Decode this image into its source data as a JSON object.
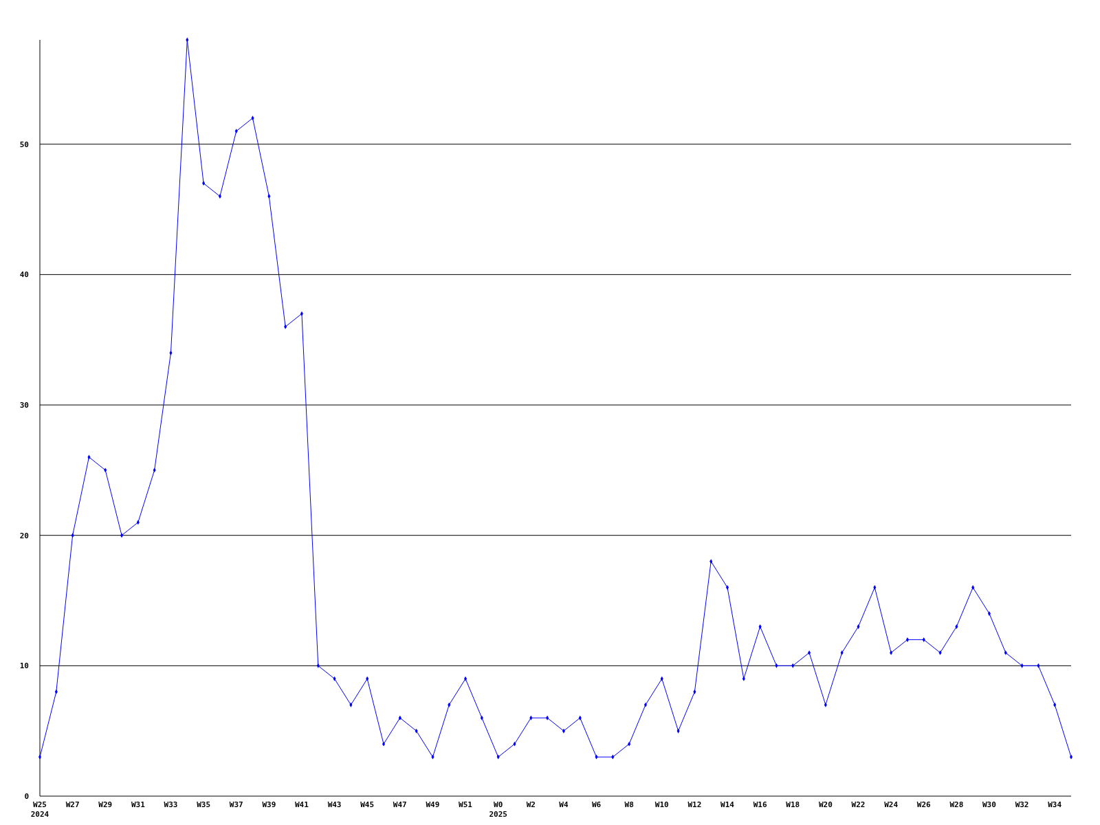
{
  "chart_data": {
    "type": "line",
    "categories": [
      "W25\n2024",
      null,
      "W27",
      null,
      "W29",
      null,
      "W31",
      null,
      "W33",
      null,
      "W35",
      null,
      "W37",
      null,
      "W39",
      null,
      "W41",
      null,
      "W43",
      null,
      "W45",
      null,
      "W47",
      null,
      "W49",
      null,
      "W51",
      null,
      "W0\n2025",
      null,
      "W2",
      null,
      "W4",
      null,
      "W6",
      null,
      "W8",
      null,
      "W10",
      null,
      "W12",
      null,
      "W14",
      null,
      "W16",
      null,
      "W18",
      null,
      "W20",
      null,
      "W22",
      null,
      "W24",
      null,
      "W26",
      null,
      "W28",
      null,
      "W30",
      null,
      "W32",
      null,
      "W34",
      null
    ],
    "series": [
      {
        "color": "#0000ff",
        "values": [
          3,
          8,
          20,
          26,
          25,
          20,
          21,
          25,
          34,
          58,
          47,
          46,
          51,
          52,
          46,
          36,
          37,
          10,
          9,
          7,
          9,
          4,
          6,
          5,
          3,
          7,
          9,
          6,
          3,
          4,
          6,
          6,
          5,
          6,
          3,
          3,
          4,
          7,
          9,
          5,
          8,
          18,
          16,
          9,
          13,
          10,
          10,
          11,
          7,
          11,
          13,
          16,
          11,
          12,
          12,
          11,
          13,
          16,
          14,
          11,
          10,
          10,
          7,
          3
        ]
      }
    ],
    "ylim": [
      0,
      58
    ],
    "yticks": [
      0,
      10,
      20,
      30,
      40,
      50
    ],
    "grid": "y",
    "marker": "diamond"
  }
}
